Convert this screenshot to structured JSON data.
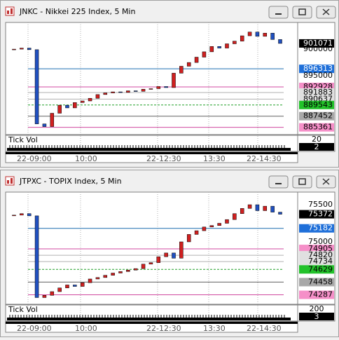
{
  "windows": [
    {
      "title": "JNKC - Nikkei 225 Index, 5 Min",
      "ylim": [
        884000,
        905000
      ],
      "closes": [
        900000,
        900200,
        899900,
        886000,
        885500,
        888000,
        889500,
        889000,
        890000,
        890300,
        890800,
        891500,
        891800,
        892000,
        891900,
        892200,
        892100,
        892500,
        892600,
        893000,
        892800,
        895500,
        896800,
        897500,
        898500,
        899500,
        900500,
        900200,
        901000,
        901500,
        902500,
        903200,
        902400,
        903000,
        901800,
        901071
      ],
      "price_labels": [
        {
          "value": 901071,
          "bg": "#000000",
          "fg": "#ffffff",
          "line": null
        },
        {
          "value": 900000,
          "bg": null,
          "fg": "#000000",
          "line": null
        },
        {
          "value": 896313,
          "bg": "#1e6fd9",
          "fg": "#ffffff",
          "line": "#1e6fb0"
        },
        {
          "value": 895000,
          "bg": null,
          "fg": "#000000",
          "line": null
        },
        {
          "value": 892928,
          "bg": "#f58fc8",
          "fg": "#000000",
          "line": "#d04aa0"
        },
        {
          "value": 891883,
          "bg": "#e0e0e0",
          "fg": "#000000",
          "line": "#b0b0b0"
        },
        {
          "value": 890637,
          "bg": "#e0e0e0",
          "fg": "#000000",
          "line": "#b0b0b0"
        },
        {
          "value": 889543,
          "bg": "#22c22a",
          "fg": "#000000",
          "line": "#22a02a"
        },
        {
          "value": 887452,
          "bg": "#a8a8a8",
          "fg": "#000000",
          "line": "#606060"
        },
        {
          "value": 885361,
          "bg": "#f58fc8",
          "fg": "#000000",
          "line": "#d04aa0"
        }
      ],
      "vol_label": "Tick Vol",
      "vol_scale": 20,
      "vol_last": 2,
      "times": [
        "22-09:00",
        "10:00",
        "22-12:30",
        "13:30",
        "22-14:30"
      ]
    },
    {
      "title": "JTPXC - TOPIX Index, 5 Min",
      "ylim": [
        74160,
        75670
      ],
      "closes": [
        75360,
        75380,
        75350,
        74250,
        74280,
        74330,
        74380,
        74420,
        74400,
        74450,
        74500,
        74520,
        74550,
        74580,
        74600,
        74620,
        74640,
        74700,
        74720,
        74800,
        74850,
        74780,
        75000,
        75100,
        75150,
        75200,
        75220,
        75250,
        75300,
        75380,
        75450,
        75500,
        75420,
        75480,
        75400,
        75372
      ],
      "price_labels": [
        {
          "value": 75500,
          "bg": null,
          "fg": "#000000",
          "line": null
        },
        {
          "value": 75372,
          "bg": "#000000",
          "fg": "#ffffff",
          "line": null
        },
        {
          "value": 75182,
          "bg": "#1e6fd9",
          "fg": "#ffffff",
          "line": "#1e6fb0"
        },
        {
          "value": 75000,
          "bg": null,
          "fg": "#000000",
          "line": null
        },
        {
          "value": 74905,
          "bg": "#f58fc8",
          "fg": "#000000",
          "line": "#d04aa0"
        },
        {
          "value": 74820,
          "bg": "#e0e0e0",
          "fg": "#000000",
          "line": "#b0b0b0"
        },
        {
          "value": 74734,
          "bg": "#e0e0e0",
          "fg": "#000000",
          "line": "#b0b0b0"
        },
        {
          "value": 74629,
          "bg": "#22c22a",
          "fg": "#000000",
          "line": "#22a02a"
        },
        {
          "value": 74458,
          "bg": "#a8a8a8",
          "fg": "#000000",
          "line": "#606060"
        },
        {
          "value": 74287,
          "bg": "#f58fc8",
          "fg": "#000000",
          "line": "#d04aa0"
        }
      ],
      "vol_label": "Tick Vol",
      "vol_scale": 200,
      "vol_last": 3,
      "times": [
        "22-09:00",
        "10:00",
        "22-12:30",
        "13:30",
        "22-14:30"
      ]
    }
  ]
}
